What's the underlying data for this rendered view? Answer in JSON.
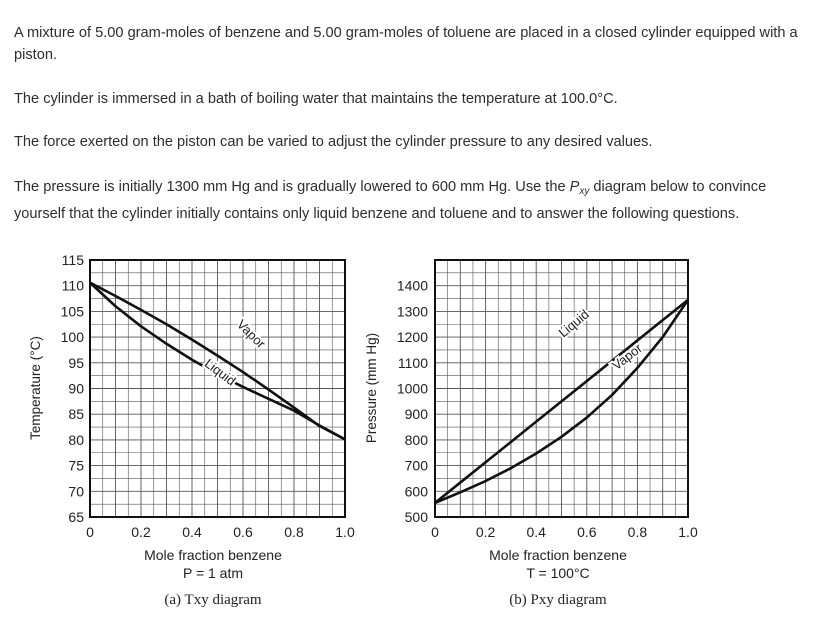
{
  "problem": {
    "p1": "A mixture of 5.00 gram-moles of benzene and 5.00 gram-moles of toluene are placed in a closed cylinder equipped with a piston.",
    "p2": "The cylinder is immersed in a bath of boiling water that maintains the temperature at 100.0°C.",
    "p3": "The force exerted on the piston can be varied to adjust the cylinder pressure to any desired values.",
    "p4_pre": "The pressure is initially 1300 mm Hg and is gradually lowered to 600 mm Hg. Use the ",
    "p4_var": "P",
    "p4_sub": "xy",
    "p4_post": " diagram below to convince yourself that the cylinder initially contains only liquid benzene and toluene and to answer the following questions."
  },
  "chart_data": [
    {
      "type": "line",
      "xlabel": "Mole fraction benzene",
      "ylabel": "Temperature (°C)",
      "condition": "P = 1 atm",
      "caption": "(a) Txy diagram",
      "xlim": [
        0,
        1.0
      ],
      "ylim": [
        65,
        115
      ],
      "xticks": [
        0,
        0.2,
        0.4,
        0.6,
        0.8,
        1.0
      ],
      "xticklabels": [
        "0",
        "0.2",
        "0.4",
        "0.6",
        "0.8",
        "1.0"
      ],
      "yticks": [
        65,
        70,
        75,
        80,
        85,
        90,
        95,
        100,
        105,
        110,
        115
      ],
      "yticklabels": [
        "65",
        "70",
        "75",
        "80",
        "85",
        "90",
        "95",
        "100",
        "105",
        "110",
        "115"
      ],
      "grid": true,
      "series": [
        {
          "name": "Vapor",
          "x": [
            0,
            0.1,
            0.2,
            0.3,
            0.4,
            0.5,
            0.6,
            0.7,
            0.8,
            0.9,
            1.0
          ],
          "y": [
            110.6,
            108.0,
            105.3,
            102.5,
            99.5,
            96.4,
            93.2,
            89.8,
            86.3,
            82.7,
            80.1
          ]
        },
        {
          "name": "Liquid",
          "x": [
            0,
            0.1,
            0.2,
            0.3,
            0.4,
            0.5,
            0.6,
            0.7,
            0.8,
            0.9,
            1.0
          ],
          "y": [
            110.6,
            106.0,
            102.1,
            98.7,
            95.6,
            92.8,
            90.3,
            88.0,
            85.7,
            82.8,
            80.1
          ]
        }
      ]
    },
    {
      "type": "line",
      "xlabel": "Mole fraction benzene",
      "ylabel": "Pressure (mm Hg)",
      "condition": "T = 100°C",
      "caption": "(b) Pxy diagram",
      "xlim": [
        0,
        1.0
      ],
      "ylim": [
        500,
        1500
      ],
      "xticks": [
        0,
        0.2,
        0.4,
        0.6,
        0.8,
        1.0
      ],
      "xticklabels": [
        "0",
        "0.2",
        "0.4",
        "0.6",
        "0.8",
        "1.0"
      ],
      "yticks": [
        500,
        600,
        700,
        800,
        900,
        1000,
        1100,
        1200,
        1300,
        1400
      ],
      "yticklabels": [
        "500",
        "600",
        "700",
        "800",
        "900",
        "1000",
        "1100",
        "1200",
        "1300",
        "1400"
      ],
      "grid": true,
      "series": [
        {
          "name": "Liquid",
          "x": [
            0,
            0.1,
            0.2,
            0.3,
            0.4,
            0.5,
            0.6,
            0.7,
            0.8,
            0.9,
            1.0
          ],
          "y": [
            555,
            634,
            713,
            792,
            871,
            950,
            1029,
            1108,
            1187,
            1266,
            1345
          ]
        },
        {
          "name": "Vapor",
          "x": [
            0,
            0.1,
            0.2,
            0.3,
            0.4,
            0.5,
            0.6,
            0.7,
            0.8,
            0.9,
            1.0
          ],
          "y": [
            555,
            596,
            640,
            690,
            747,
            812,
            887,
            975,
            1080,
            1200,
            1345
          ]
        }
      ]
    }
  ]
}
